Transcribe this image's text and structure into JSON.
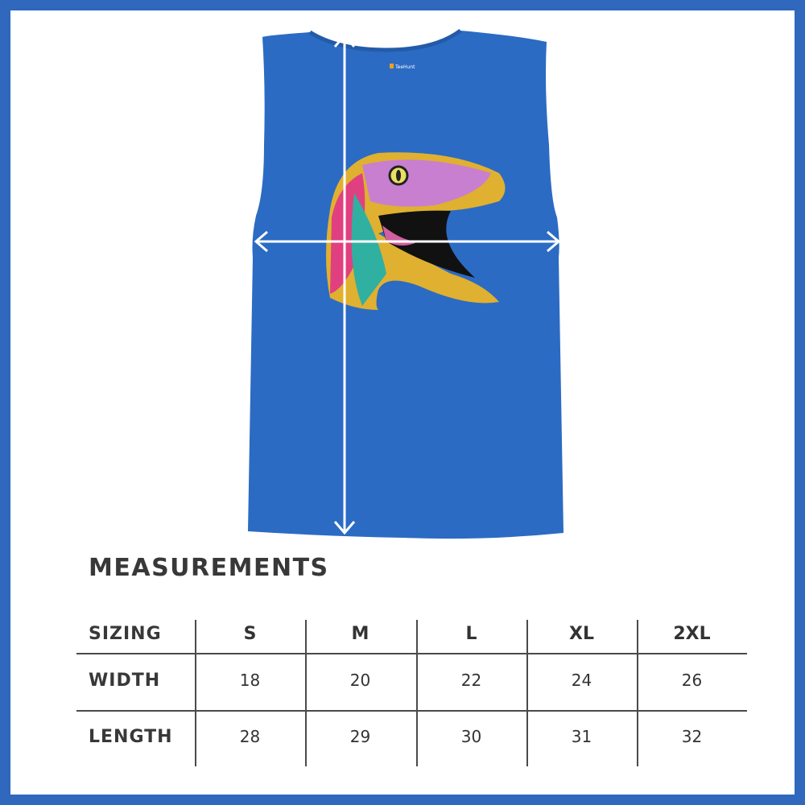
{
  "colors": {
    "frame": "#2f68bd",
    "shirt": "#2b6bc3",
    "arrow": "#ffffff",
    "text": "#383838"
  },
  "product": {
    "brand_label": "TeeHunt",
    "icons": [
      "vertical-length-arrow",
      "horizontal-width-arrow"
    ]
  },
  "title": "MEASUREMENTS",
  "table": {
    "header": [
      "SIZING",
      "S",
      "M",
      "L",
      "XL",
      "2XL"
    ],
    "rows": [
      {
        "label": "WIDTH",
        "values": [
          "18",
          "20",
          "22",
          "24",
          "26"
        ]
      },
      {
        "label": "LENGTH",
        "values": [
          "28",
          "29",
          "30",
          "31",
          "32"
        ]
      }
    ]
  }
}
